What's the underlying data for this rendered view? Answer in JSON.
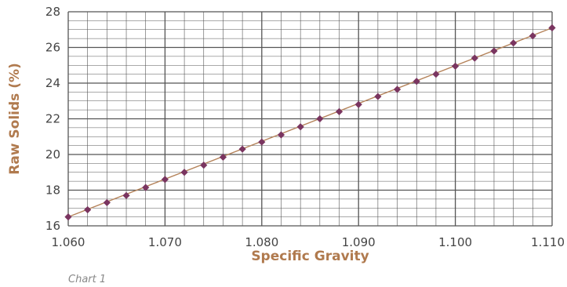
{
  "chart_data": {
    "type": "scatter",
    "xlabel": "Specific Gravity",
    "ylabel": "Raw Solids (%)",
    "xlim": [
      1.06,
      1.11
    ],
    "ylim": [
      16,
      28
    ],
    "x_ticks": [
      "1.060",
      "1.070",
      "1.080",
      "1.090",
      "1.100",
      "1.110"
    ],
    "y_ticks": [
      "16",
      "18",
      "20",
      "22",
      "24",
      "26",
      "28"
    ],
    "grid": true,
    "footnote": "Chart 1",
    "series": [
      {
        "x": [
          1.06,
          1.062,
          1.064,
          1.066,
          1.068,
          1.07,
          1.072,
          1.074,
          1.076,
          1.078,
          1.08,
          1.082,
          1.084,
          1.086,
          1.088,
          1.09,
          1.092,
          1.094,
          1.096,
          1.098,
          1.1,
          1.102,
          1.104,
          1.106,
          1.108,
          1.11
        ],
        "values": [
          16.5,
          16.9,
          17.3,
          17.7,
          18.15,
          18.6,
          19.0,
          19.4,
          19.85,
          20.3,
          20.7,
          21.1,
          21.55,
          22.0,
          22.4,
          22.8,
          23.25,
          23.65,
          24.1,
          24.5,
          24.95,
          25.4,
          25.8,
          26.25,
          26.65,
          27.1
        ]
      }
    ],
    "colors": {
      "marker": "#7a3560",
      "line": "#b5835a",
      "axis_title": "#b07a4e",
      "grid": "#555555"
    }
  }
}
